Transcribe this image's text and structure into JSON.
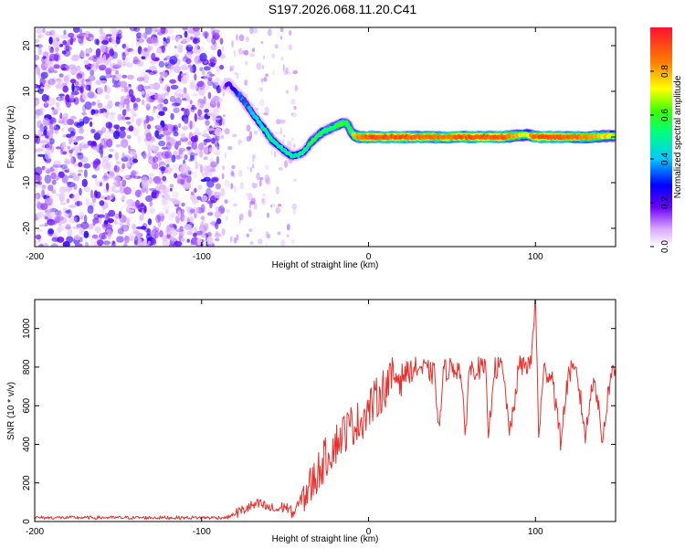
{
  "page": {
    "title": "S197.2026.068.11.20.C41"
  },
  "chart_data": [
    {
      "type": "heatmap",
      "xlabel": "Height of straight line (km)",
      "ylabel": "Frequency (Hz)",
      "xlim": [
        -200,
        148
      ],
      "ylim": [
        -24,
        24
      ],
      "x_ticks": [
        -200,
        -100,
        0,
        100
      ],
      "x_tick_labels": [
        "-200",
        "-100",
        "0",
        "100"
      ],
      "y_ticks": [
        -20,
        -10,
        0,
        10,
        20
      ],
      "y_tick_labels": [
        "-20",
        "-10",
        "0",
        "10",
        "20"
      ],
      "track": {
        "x": [
          -86,
          -84,
          -82,
          -80,
          -78,
          -76,
          -73,
          -70,
          -67,
          -64,
          -61,
          -58,
          -55,
          -52,
          -49,
          -46,
          -43,
          -40,
          -37,
          -34,
          -31,
          -28,
          -25,
          -22,
          -19,
          -16,
          -13,
          -10,
          -8,
          -5,
          0,
          20,
          40,
          60,
          80,
          95,
          100,
          110,
          130,
          148
        ],
        "y": [
          11,
          12,
          11,
          10,
          9.5,
          8.5,
          7,
          5.5,
          4,
          2.5,
          1,
          -0.5,
          -1.5,
          -2.5,
          -3.5,
          -4,
          -4,
          -3.5,
          -2.5,
          -1,
          0,
          1,
          1.5,
          2,
          2.5,
          3,
          3,
          1,
          0.2,
          0,
          0,
          0,
          0,
          0,
          0,
          0.5,
          0,
          0,
          0,
          0.3
        ],
        "amplitude": [
          0.15,
          0.25,
          0.2,
          0.25,
          0.3,
          0.35,
          0.35,
          0.4,
          0.45,
          0.45,
          0.5,
          0.5,
          0.5,
          0.45,
          0.5,
          0.5,
          0.45,
          0.5,
          0.5,
          0.55,
          0.55,
          0.55,
          0.55,
          0.55,
          0.55,
          0.6,
          0.55,
          0.6,
          0.8,
          0.85,
          0.9,
          0.9,
          0.85,
          0.9,
          0.9,
          0.7,
          0.9,
          0.9,
          0.85,
          0.7
        ]
      },
      "noise_region_x": [
        -200,
        -88
      ],
      "colorbar": {
        "label": "Normalized spectral amplitude",
        "range": [
          0,
          1
        ],
        "ticks": [
          0.0,
          0.2,
          0.4,
          0.6,
          0.8
        ],
        "tick_labels": [
          "0.0",
          "0.2",
          "0.4",
          "0.6",
          "0.8"
        ]
      }
    },
    {
      "type": "line",
      "xlabel": "Height of straight line (km)",
      "ylabel": "SNR (10 * v/v)",
      "xlim": [
        -200,
        148
      ],
      "ylim": [
        0,
        1150
      ],
      "x_ticks": [
        -200,
        -100,
        0,
        100
      ],
      "x_tick_labels": [
        "-200",
        "-100",
        "0",
        "100"
      ],
      "y_ticks": [
        0,
        200,
        400,
        600,
        800,
        1000
      ],
      "y_tick_labels": [
        "0",
        "200",
        "400",
        "600",
        "800",
        "1000"
      ],
      "series": [
        {
          "name": "SNR",
          "color": "#e8302c",
          "x": [
            -200,
            -160,
            -120,
            -85,
            -80,
            -75,
            -70,
            -65,
            -60,
            -55,
            -50,
            -45,
            -40,
            -35,
            -30,
            -25,
            -20,
            -15,
            -10,
            -5,
            0,
            5,
            10,
            15,
            20,
            25,
            30,
            35,
            40,
            42,
            45,
            50,
            55,
            58,
            60,
            65,
            70,
            72,
            75,
            80,
            85,
            90,
            95,
            97,
            100,
            102,
            105,
            110,
            115,
            120,
            125,
            130,
            135,
            140,
            145,
            148
          ],
          "y": [
            20,
            20,
            20,
            20,
            40,
            60,
            80,
            90,
            70,
            60,
            80,
            40,
            120,
            180,
            260,
            340,
            400,
            460,
            500,
            520,
            580,
            640,
            700,
            750,
            760,
            780,
            800,
            780,
            760,
            450,
            780,
            800,
            790,
            430,
            780,
            800,
            780,
            440,
            790,
            800,
            450,
            800,
            820,
            800,
            1150,
            450,
            780,
            760,
            420,
            780,
            760,
            440,
            780,
            420,
            760,
            780
          ]
        }
      ]
    }
  ],
  "colors": {
    "snr_line": "#e8302c",
    "noise_scatter": "#8a2be2"
  }
}
